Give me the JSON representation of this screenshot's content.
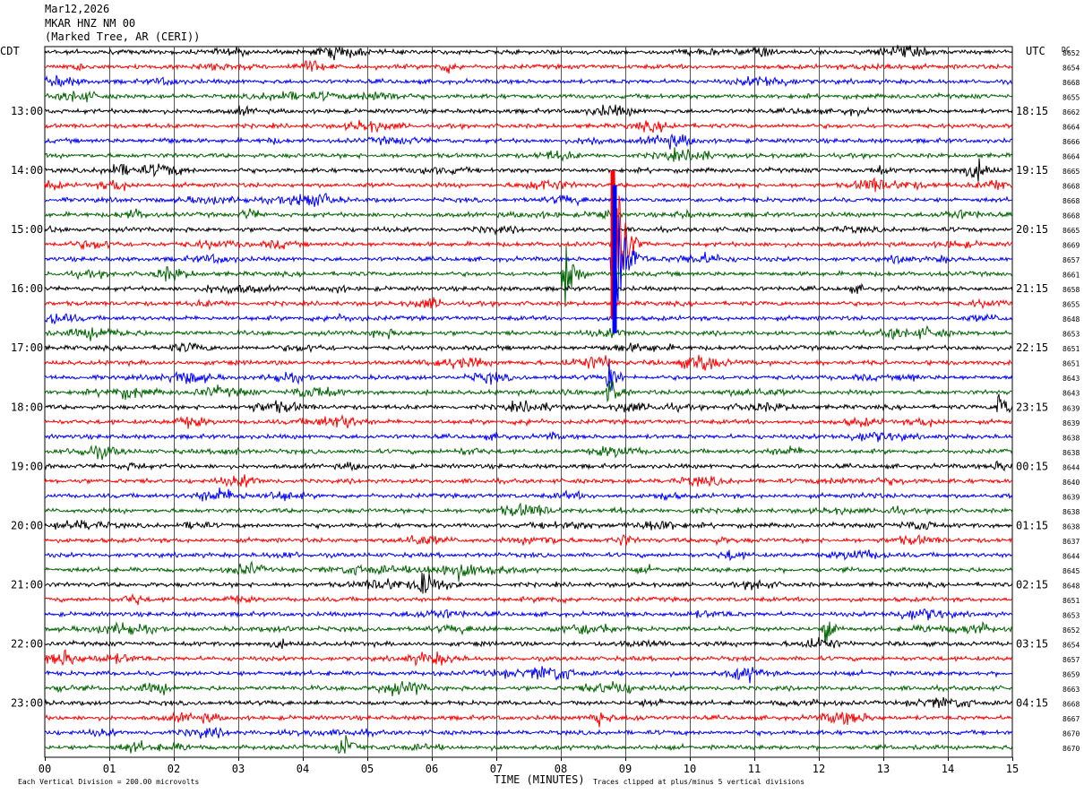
{
  "header": {
    "date": "Mar12,2026",
    "station": "MKAR HNZ NM 00",
    "location": "(Marked Tree, AR (CERI))"
  },
  "labels": {
    "left_tz": "CDT",
    "right_tz": "UTC",
    "dc_header": "DC",
    "xaxis": "TIME (MINUTES)",
    "scale_note": "Each Vertical Division =  200.00 microvolts",
    "clip_note": "Traces clipped at plus/minus 5 vertical divisions"
  },
  "chart_data": {
    "type": "line",
    "title": "MKAR HNZ NM 00",
    "xlabel": "TIME (MINUTES)",
    "xlim": [
      0,
      15
    ],
    "x_ticks": [
      "00",
      "01",
      "02",
      "03",
      "04",
      "05",
      "06",
      "07",
      "08",
      "09",
      "10",
      "11",
      "12",
      "13",
      "14",
      "15"
    ],
    "row_minutes": 15,
    "num_rows": 48,
    "grid": true,
    "trace_colors": [
      "#000000",
      "#ff0000",
      "#0000ff",
      "#006400"
    ],
    "left_time_labels": [
      {
        "row": 4,
        "label": "13:00"
      },
      {
        "row": 8,
        "label": "14:00"
      },
      {
        "row": 12,
        "label": "15:00"
      },
      {
        "row": 16,
        "label": "16:00"
      },
      {
        "row": 20,
        "label": "17:00"
      },
      {
        "row": 24,
        "label": "18:00"
      },
      {
        "row": 28,
        "label": "19:00"
      },
      {
        "row": 32,
        "label": "20:00"
      },
      {
        "row": 36,
        "label": "21:00"
      },
      {
        "row": 40,
        "label": "22:00"
      },
      {
        "row": 44,
        "label": "23:00"
      }
    ],
    "right_time_labels": [
      {
        "row": 4,
        "label": "18:15"
      },
      {
        "row": 8,
        "label": "19:15"
      },
      {
        "row": 12,
        "label": "20:15"
      },
      {
        "row": 16,
        "label": "21:15"
      },
      {
        "row": 20,
        "label": "22:15"
      },
      {
        "row": 24,
        "label": "23:15"
      },
      {
        "row": 28,
        "label": "00:15"
      },
      {
        "row": 32,
        "label": "01:15"
      },
      {
        "row": 36,
        "label": "02:15"
      },
      {
        "row": 40,
        "label": "03:15"
      },
      {
        "row": 44,
        "label": "04:15"
      }
    ],
    "dc_offsets": [
      "8652",
      "8654",
      "8668",
      "8655",
      "8662",
      "8664",
      "8666",
      "8664",
      "8665",
      "8668",
      "8668",
      "8668",
      "8665",
      "8669",
      "8657",
      "8661",
      "8658",
      "8655",
      "8648",
      "8653",
      "8651",
      "8651",
      "8643",
      "8643",
      "8639",
      "8639",
      "8638",
      "8638",
      "8644",
      "8640",
      "8639",
      "8638",
      "8638",
      "8637",
      "8644",
      "8645",
      "8648",
      "8651",
      "8653",
      "8652",
      "8654",
      "8657",
      "8659",
      "8663",
      "8668",
      "8667",
      "8670",
      "8670"
    ],
    "events": [
      {
        "row": 13,
        "minute": 8.82,
        "amplitude": 5.0,
        "clipped": true,
        "spread_rows": 3
      },
      {
        "row": 14,
        "minute": 8.82,
        "amplitude": 5.0,
        "clipped": true,
        "spread_rows": 3
      },
      {
        "row": 15,
        "minute": 8.05,
        "amplitude": 2.4,
        "clipped": false
      },
      {
        "row": 22,
        "minute": 8.75,
        "amplitude": 1.2,
        "clipped": false
      },
      {
        "row": 23,
        "minute": 8.75,
        "amplitude": 1.1,
        "clipped": false
      },
      {
        "row": 24,
        "minute": 14.8,
        "amplitude": 1.0,
        "clipped": false
      },
      {
        "row": 36,
        "minute": 5.85,
        "amplitude": 0.9,
        "clipped": false
      },
      {
        "row": 39,
        "minute": 12.1,
        "amplitude": 0.9,
        "clipped": false
      },
      {
        "row": 47,
        "minute": 4.6,
        "amplitude": 1.3,
        "clipped": false
      }
    ]
  }
}
